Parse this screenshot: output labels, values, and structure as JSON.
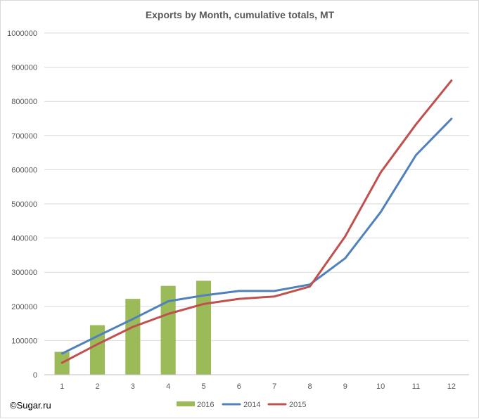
{
  "chart_data": {
    "type": "bar+line",
    "title": "Exports by Month, cumulative totals, MT",
    "xlabel": "",
    "ylabel": "",
    "categories": [
      "1",
      "2",
      "3",
      "4",
      "5",
      "6",
      "7",
      "8",
      "9",
      "10",
      "11",
      "12"
    ],
    "ylim": [
      0,
      1000000
    ],
    "y_ticks": [
      0,
      100000,
      200000,
      300000,
      400000,
      500000,
      600000,
      700000,
      800000,
      900000,
      1000000
    ],
    "y_tick_labels": [
      "0",
      "100000",
      "200000",
      "300000",
      "400000",
      "500000",
      "600000",
      "700000",
      "800000",
      "900000",
      "1000000"
    ],
    "grid": true,
    "legend_position": "bottom",
    "series": [
      {
        "name": "2016",
        "kind": "bar",
        "color": "#9bbb59",
        "values": [
          67000,
          145000,
          222000,
          260000,
          275000,
          null,
          null,
          null,
          null,
          null,
          null,
          null
        ]
      },
      {
        "name": "2014",
        "kind": "line",
        "color": "#4f81bd",
        "values": [
          62000,
          113000,
          163000,
          215000,
          232000,
          245000,
          245000,
          264000,
          341000,
          476000,
          643000,
          749000
        ]
      },
      {
        "name": "2015",
        "kind": "line",
        "color": "#c0504d",
        "values": [
          35000,
          89000,
          140000,
          178000,
          207000,
          222000,
          229000,
          258000,
          405000,
          592000,
          733000,
          861000
        ]
      }
    ]
  },
  "credit": {
    "text": "©Sugar.ru"
  },
  "colors": {
    "gridline": "#d9d9d9",
    "axis": "#bfbfbf",
    "text": "#595959"
  }
}
